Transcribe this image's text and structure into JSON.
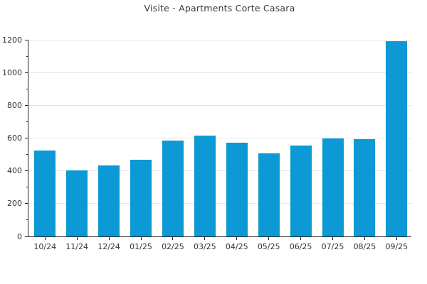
{
  "title": "Visite - Apartments Corte Casara",
  "colors": {
    "bar": "#0c99d6",
    "grid": "#e6e6e6",
    "axis": "#262626",
    "tick_text": "#333333",
    "title_text": "#3a3a3a",
    "background": "#ffffff"
  },
  "chart_data": {
    "type": "bar",
    "title": "Visite - Apartments Corte Casara",
    "categories": [
      "10/24",
      "11/24",
      "12/24",
      "01/25",
      "02/25",
      "03/25",
      "04/25",
      "05/25",
      "06/25",
      "07/25",
      "08/25",
      "09/25"
    ],
    "values": [
      525,
      405,
      435,
      470,
      585,
      615,
      570,
      505,
      555,
      600,
      595,
      1190
    ],
    "xlabel": "",
    "ylabel": "",
    "ylim": [
      0,
      1200
    ],
    "ytick_interval": 200,
    "ytick_minor_interval": 100,
    "yticks": [
      0,
      200,
      400,
      600,
      800,
      1000,
      1200
    ],
    "grid": "horizontal-major-only",
    "legend": "none",
    "bar_color": "#0c99d6",
    "spines": [
      "left",
      "bottom"
    ]
  }
}
